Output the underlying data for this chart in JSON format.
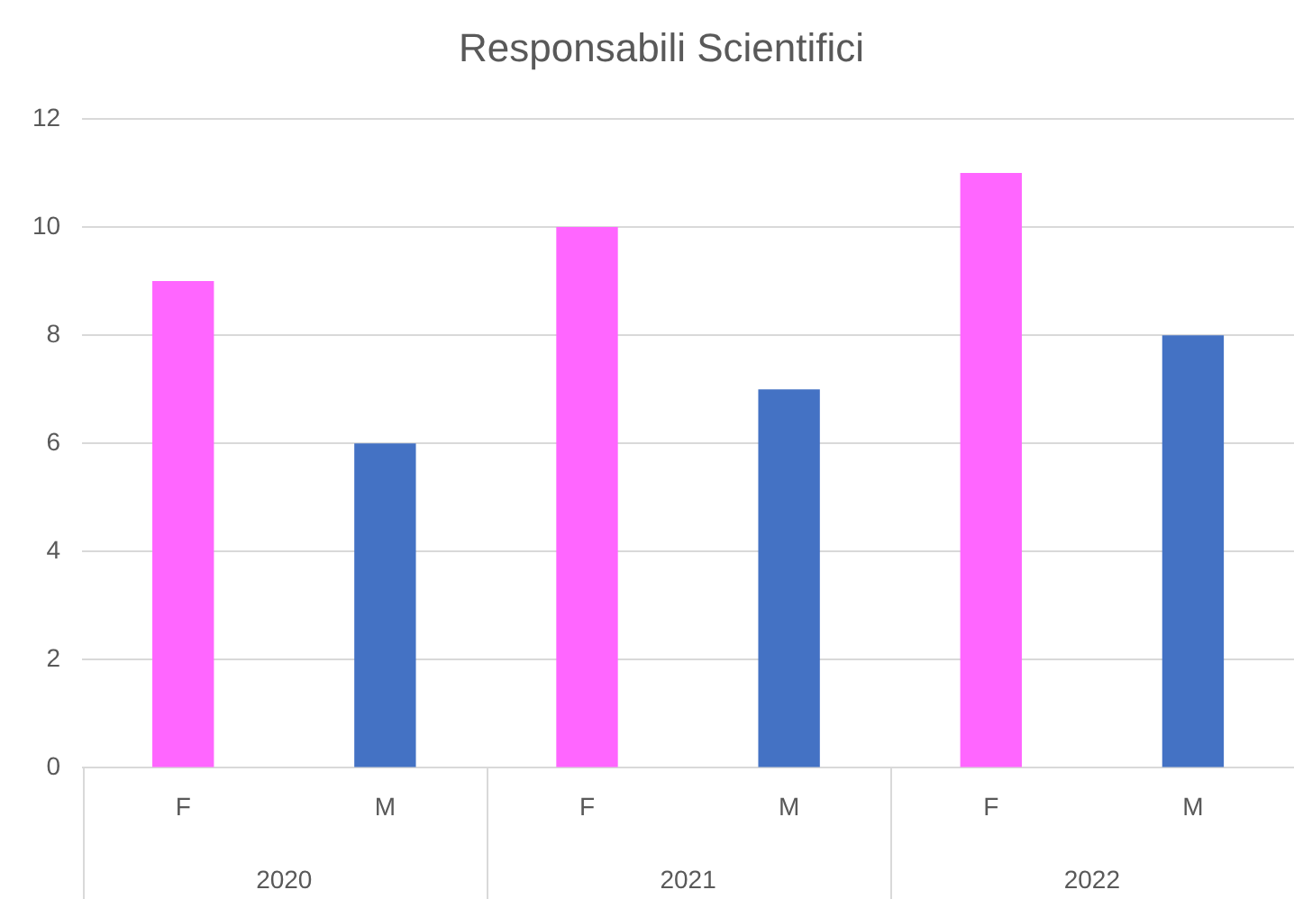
{
  "chart_data": {
    "type": "bar",
    "title": "Responsabili Scientifici",
    "categories": [
      "F",
      "M",
      "F",
      "M",
      "F",
      "M"
    ],
    "values": [
      9,
      6,
      10,
      7,
      11,
      8
    ],
    "colors": [
      "#ff66ff",
      "#4472c4",
      "#ff66ff",
      "#4472c4",
      "#ff66ff",
      "#4472c4"
    ],
    "annotations": [
      "2020",
      "2021",
      "2022"
    ],
    "ylim": [
      0,
      12
    ],
    "yticks": [
      0,
      2,
      4,
      6,
      8,
      10,
      12
    ],
    "grid": "y"
  }
}
